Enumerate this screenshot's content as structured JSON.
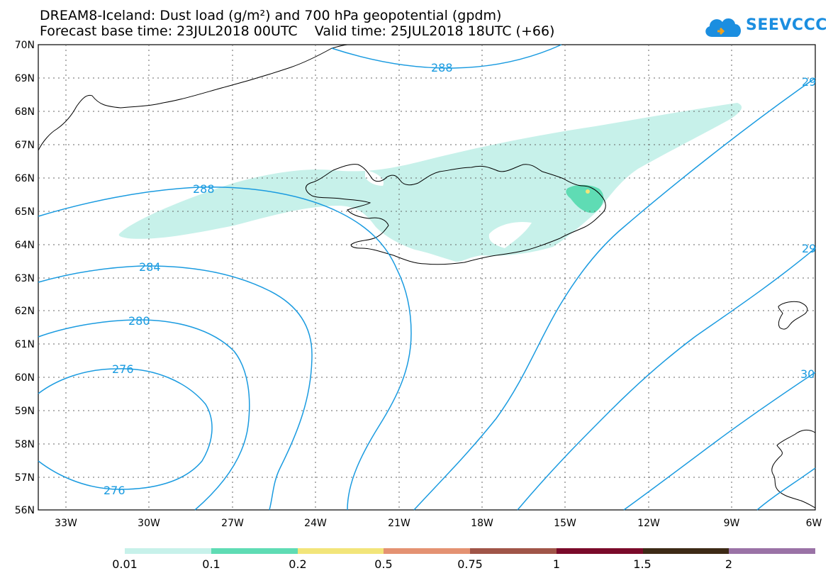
{
  "title": {
    "line1": "DREAM8-Iceland: Dust load (g/m²) and 700 hPa geopotential (gpdm)",
    "line2": "Forecast base time: 23JUL2018 00UTC    Valid time: 25JUL2018 18UTC (+66)"
  },
  "logo": {
    "text": "SEEVCCC",
    "icon": "cloud-icon"
  },
  "map": {
    "lat_labels": [
      "70N",
      "69N",
      "68N",
      "67N",
      "66N",
      "65N",
      "64N",
      "63N",
      "62N",
      "61N",
      "60N",
      "59N",
      "58N",
      "57N",
      "56N"
    ],
    "lon_labels": [
      "33W",
      "30W",
      "27W",
      "24W",
      "21W",
      "18W",
      "15W",
      "12W",
      "9W",
      "6W"
    ],
    "grid": true,
    "contour_labels": [
      "288",
      "288",
      "284",
      "280",
      "276",
      "276",
      "29",
      "29",
      "30"
    ]
  },
  "colorbar": {
    "colors": [
      "#c7f1ea",
      "#5fdcb4",
      "#f2e57a",
      "#e49272",
      "#a05548",
      "#7a0a2a",
      "#3d2a16",
      "#9a72a6"
    ],
    "labels": [
      "0.01",
      "0.1",
      "0.2",
      "0.5",
      "0.75",
      "1",
      "1.5",
      "2"
    ]
  }
}
